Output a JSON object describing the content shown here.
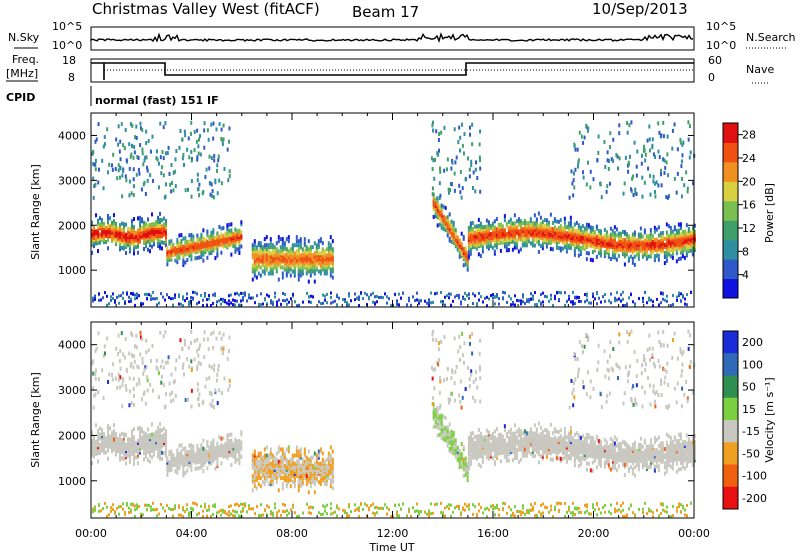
{
  "header": {
    "radar": "Christmas Valley West (fitACF)",
    "beam": "Beam 17",
    "date": "10/Sep/2013",
    "cpid_label": "CPID",
    "cpid_value": "normal (fast) 151 IF"
  },
  "noise_panel": {
    "left_label": "N.Sky",
    "right_label": "N.Search",
    "left_ticks": [
      "10^5",
      "10^0"
    ],
    "right_ticks": [
      "10^5",
      "10^0"
    ]
  },
  "freq_panel": {
    "left_label_line1": "Freq.",
    "left_label_line2": "[MHz]",
    "right_label": "Nave",
    "left_ticks": [
      "18",
      "8"
    ],
    "right_ticks": [
      "60",
      "0"
    ]
  },
  "chart_data": [
    {
      "type": "heatmap",
      "name": "power",
      "ylabel": "Slant Range [km]",
      "xlabel": "Time UT",
      "x_ticks": [
        "00:00",
        "04:00",
        "08:00",
        "12:00",
        "16:00",
        "20:00",
        "00:00"
      ],
      "y_ticks": [
        1000,
        2000,
        3000,
        4000
      ],
      "ylim": [
        180,
        4500
      ],
      "xlim_hours": [
        0,
        24
      ],
      "colorbar": {
        "label": "Power [dB]",
        "ticks": [
          4,
          8,
          12,
          16,
          20,
          24,
          28
        ],
        "range": [
          0,
          30
        ],
        "colors": [
          "#1010e0",
          "#2f58c8",
          "#2f8fa0",
          "#3f9f6a",
          "#7ac050",
          "#d8d040",
          "#f09020",
          "#f05010",
          "#e01010"
        ]
      }
    },
    {
      "type": "heatmap",
      "name": "velocity",
      "ylabel": "Slant Range [km]",
      "xlabel": "Time UT",
      "x_ticks": [
        "00:00",
        "04:00",
        "08:00",
        "12:00",
        "16:00",
        "20:00",
        "00:00"
      ],
      "y_ticks": [
        1000,
        2000,
        3000,
        4000
      ],
      "ylim": [
        180,
        4500
      ],
      "xlim_hours": [
        0,
        24
      ],
      "colorbar": {
        "label": "Velocity [m s⁻¹]",
        "ticks": [
          "200",
          "100",
          "50",
          "15",
          "-15",
          "-50",
          "-100",
          "-200"
        ],
        "colors": [
          "#1a2bd8",
          "#2f6ab8",
          "#2f8f50",
          "#7ad040",
          "#c8c8c0",
          "#f0a020",
          "#f06010",
          "#e81010"
        ]
      }
    }
  ],
  "xlabel": "Time UT"
}
